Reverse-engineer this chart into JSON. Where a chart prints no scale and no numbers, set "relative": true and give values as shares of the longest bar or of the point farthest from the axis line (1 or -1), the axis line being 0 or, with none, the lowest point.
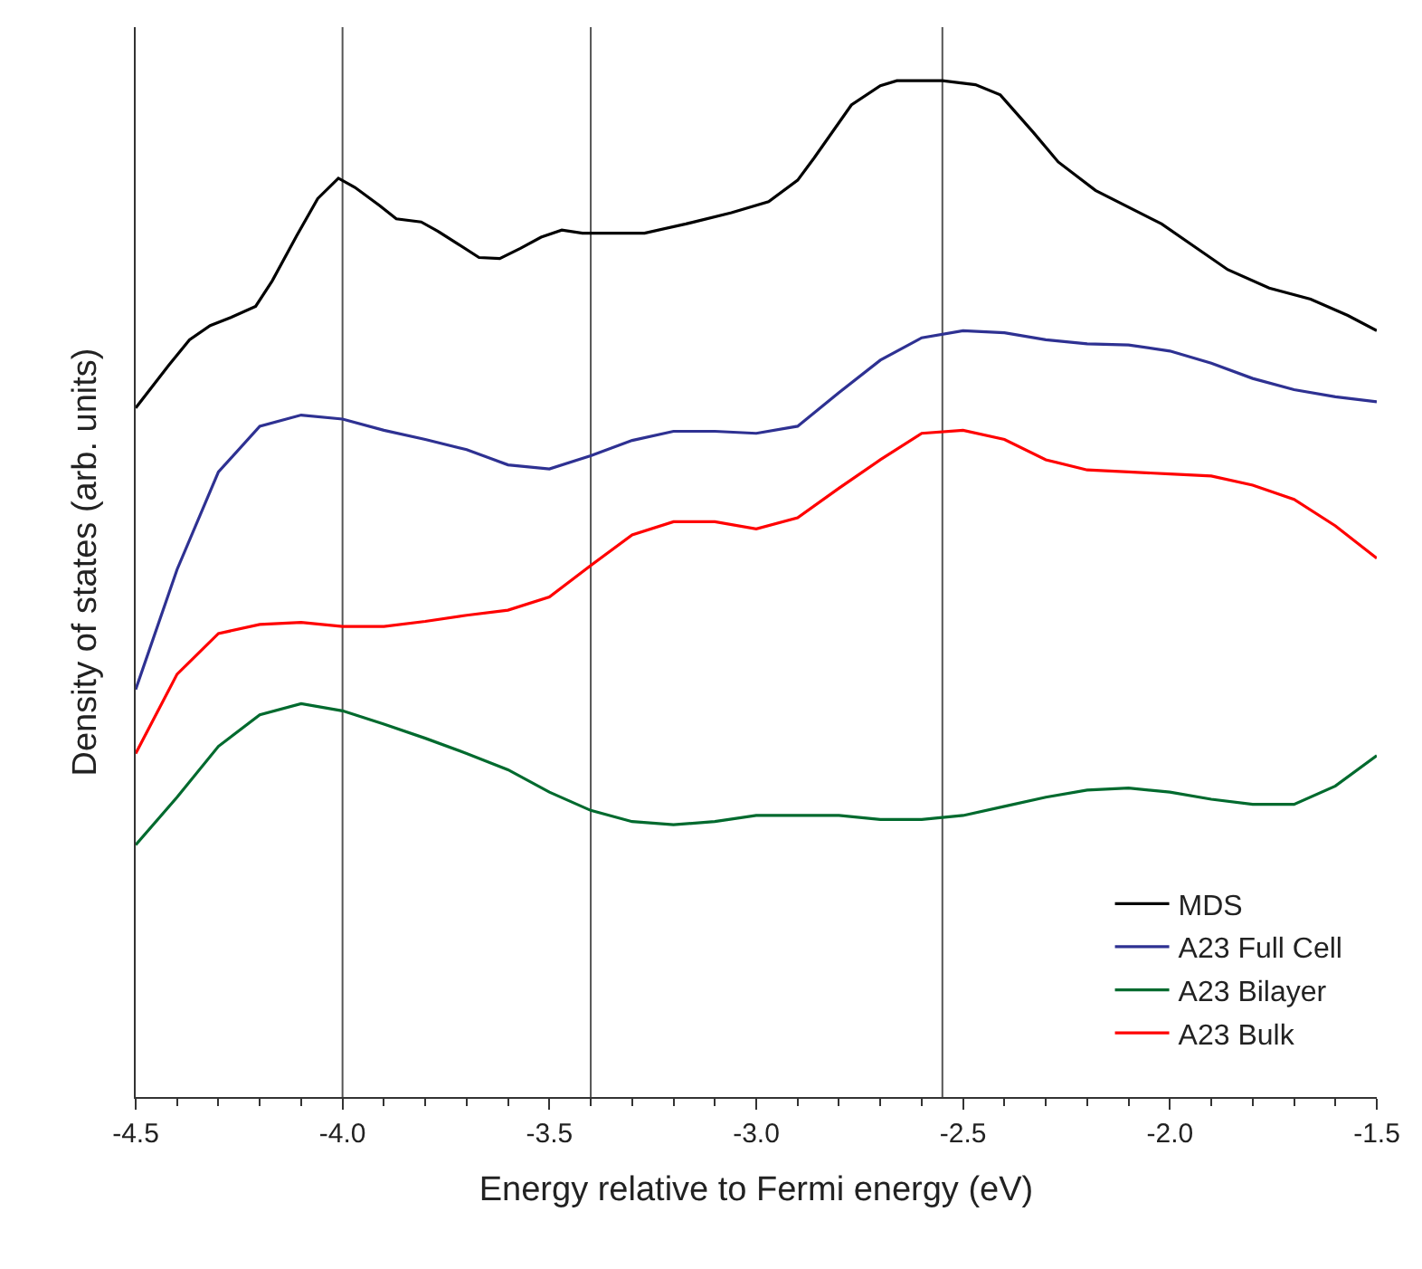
{
  "chart_data": {
    "type": "line",
    "relative": true,
    "xlabel": "Energy relative to Fermi energy (eV)",
    "ylabel": "Density of states (arb. units)",
    "x": [
      -4.5,
      -4.4,
      -4.3,
      -4.2,
      -4.1,
      -4.0,
      -3.9,
      -3.8,
      -3.7,
      -3.6,
      -3.5,
      -3.4,
      -3.3,
      -3.2,
      -3.1,
      -3.0,
      -2.9,
      -2.8,
      -2.7,
      -2.6,
      -2.5,
      -2.4,
      -2.3,
      -2.2,
      -2.1,
      -2.0,
      -1.9,
      -1.8,
      -1.7,
      -1.6,
      -1.5
    ],
    "xlim": [
      -4.5,
      -1.5
    ],
    "xticks": [
      -4.5,
      {
        "value": -4,
        "label": "-4.0"
      },
      -3.5,
      {
        "value": -3,
        "label": "-3.0"
      },
      -2.5,
      {
        "value": -2,
        "label": "-2.0"
      },
      -1.5
    ],
    "series": [
      {
        "name": "MDS",
        "color": "#000000",
        "x": [
          -4.5,
          -4.42,
          -4.37,
          -4.32,
          -4.27,
          -4.21,
          -4.17,
          -4.11,
          -4.06,
          -4.01,
          -3.97,
          -3.91,
          -3.87,
          -3.81,
          -3.77,
          -3.72,
          -3.67,
          -3.62,
          -3.57,
          -3.52,
          -3.47,
          -3.42,
          -3.36,
          -3.27,
          -3.17,
          -3.06,
          -2.97,
          -2.9,
          -2.86,
          -2.77,
          -2.7,
          -2.66,
          -2.55,
          -2.47,
          -2.41,
          -2.33,
          -2.27,
          -2.18,
          -2.02,
          -1.86,
          -1.76,
          -1.66,
          -1.57,
          -1.5
        ],
        "values": [
          0.678,
          0.72,
          0.745,
          0.759,
          0.767,
          0.778,
          0.803,
          0.848,
          0.884,
          0.904,
          0.895,
          0.877,
          0.864,
          0.861,
          0.852,
          0.839,
          0.826,
          0.825,
          0.835,
          0.846,
          0.853,
          0.85,
          0.85,
          0.85,
          0.859,
          0.87,
          0.881,
          0.902,
          0.924,
          0.976,
          0.995,
          1.0,
          1.0,
          0.996,
          0.986,
          0.949,
          0.92,
          0.892,
          0.859,
          0.814,
          0.796,
          0.785,
          0.769,
          0.754
        ]
      },
      {
        "name": "A23 Full Cell",
        "color": "#2e3192",
        "values": [
          0.401,
          0.519,
          0.615,
          0.66,
          0.671,
          0.667,
          0.656,
          0.647,
          0.637,
          0.622,
          0.618,
          0.631,
          0.646,
          0.655,
          0.655,
          0.653,
          0.66,
          0.693,
          0.725,
          0.747,
          0.754,
          0.752,
          0.745,
          0.741,
          0.74,
          0.734,
          0.722,
          0.707,
          0.696,
          0.689,
          0.684
        ]
      },
      {
        "name": "A23 Bilayer",
        "color": "#006a2e",
        "values": [
          0.248,
          0.295,
          0.345,
          0.376,
          0.387,
          0.38,
          0.367,
          0.353,
          0.338,
          0.322,
          0.3,
          0.282,
          0.271,
          0.268,
          0.271,
          0.277,
          0.277,
          0.277,
          0.273,
          0.273,
          0.277,
          0.286,
          0.295,
          0.302,
          0.304,
          0.3,
          0.293,
          0.288,
          0.288,
          0.306,
          0.336
        ]
      },
      {
        "name": "A23 Bulk",
        "color": "#ff0000",
        "values": [
          0.338,
          0.416,
          0.456,
          0.465,
          0.467,
          0.463,
          0.463,
          0.468,
          0.474,
          0.479,
          0.492,
          0.523,
          0.553,
          0.566,
          0.566,
          0.559,
          0.57,
          0.599,
          0.627,
          0.653,
          0.656,
          0.647,
          0.627,
          0.617,
          0.615,
          0.613,
          0.611,
          0.602,
          0.588,
          0.562,
          0.53
        ]
      }
    ],
    "ref_lines": [
      {
        "axis": "x",
        "value": -4.0,
        "color": "#555555"
      },
      {
        "axis": "x",
        "value": -3.4,
        "color": "#555555"
      },
      {
        "axis": "x",
        "value": -2.55,
        "color": "#555555"
      }
    ],
    "legend": "bottom right",
    "grid": false,
    "marker": "none",
    "line_style": "solid"
  }
}
